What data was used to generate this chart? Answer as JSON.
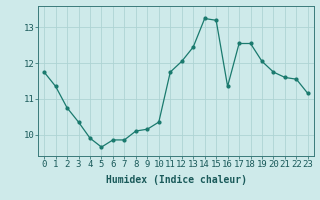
{
  "x": [
    0,
    1,
    2,
    3,
    4,
    5,
    6,
    7,
    8,
    9,
    10,
    11,
    12,
    13,
    14,
    15,
    16,
    17,
    18,
    19,
    20,
    21,
    22,
    23
  ],
  "y": [
    11.75,
    11.35,
    10.75,
    10.35,
    9.9,
    9.65,
    9.85,
    9.85,
    10.1,
    10.15,
    10.35,
    11.75,
    12.05,
    12.45,
    13.25,
    13.2,
    11.35,
    12.55,
    12.55,
    12.05,
    11.75,
    11.6,
    11.55,
    11.15
  ],
  "line_color": "#1a7a6e",
  "marker": "o",
  "markersize": 2.0,
  "linewidth": 0.9,
  "bg_color": "#ceeaea",
  "grid_color": "#aed4d4",
  "xlabel": "Humidex (Indice chaleur)",
  "xlabel_fontsize": 7,
  "ylabel_ticks": [
    10,
    11,
    12,
    13
  ],
  "xlim": [
    -0.5,
    23.5
  ],
  "ylim": [
    9.4,
    13.6
  ],
  "xtick_labels": [
    "0",
    "1",
    "2",
    "3",
    "4",
    "5",
    "6",
    "7",
    "8",
    "9",
    "10",
    "11",
    "12",
    "13",
    "14",
    "15",
    "16",
    "17",
    "18",
    "19",
    "20",
    "21",
    "22",
    "23"
  ],
  "tick_fontsize": 6.5,
  "spine_color": "#3a7a7a"
}
